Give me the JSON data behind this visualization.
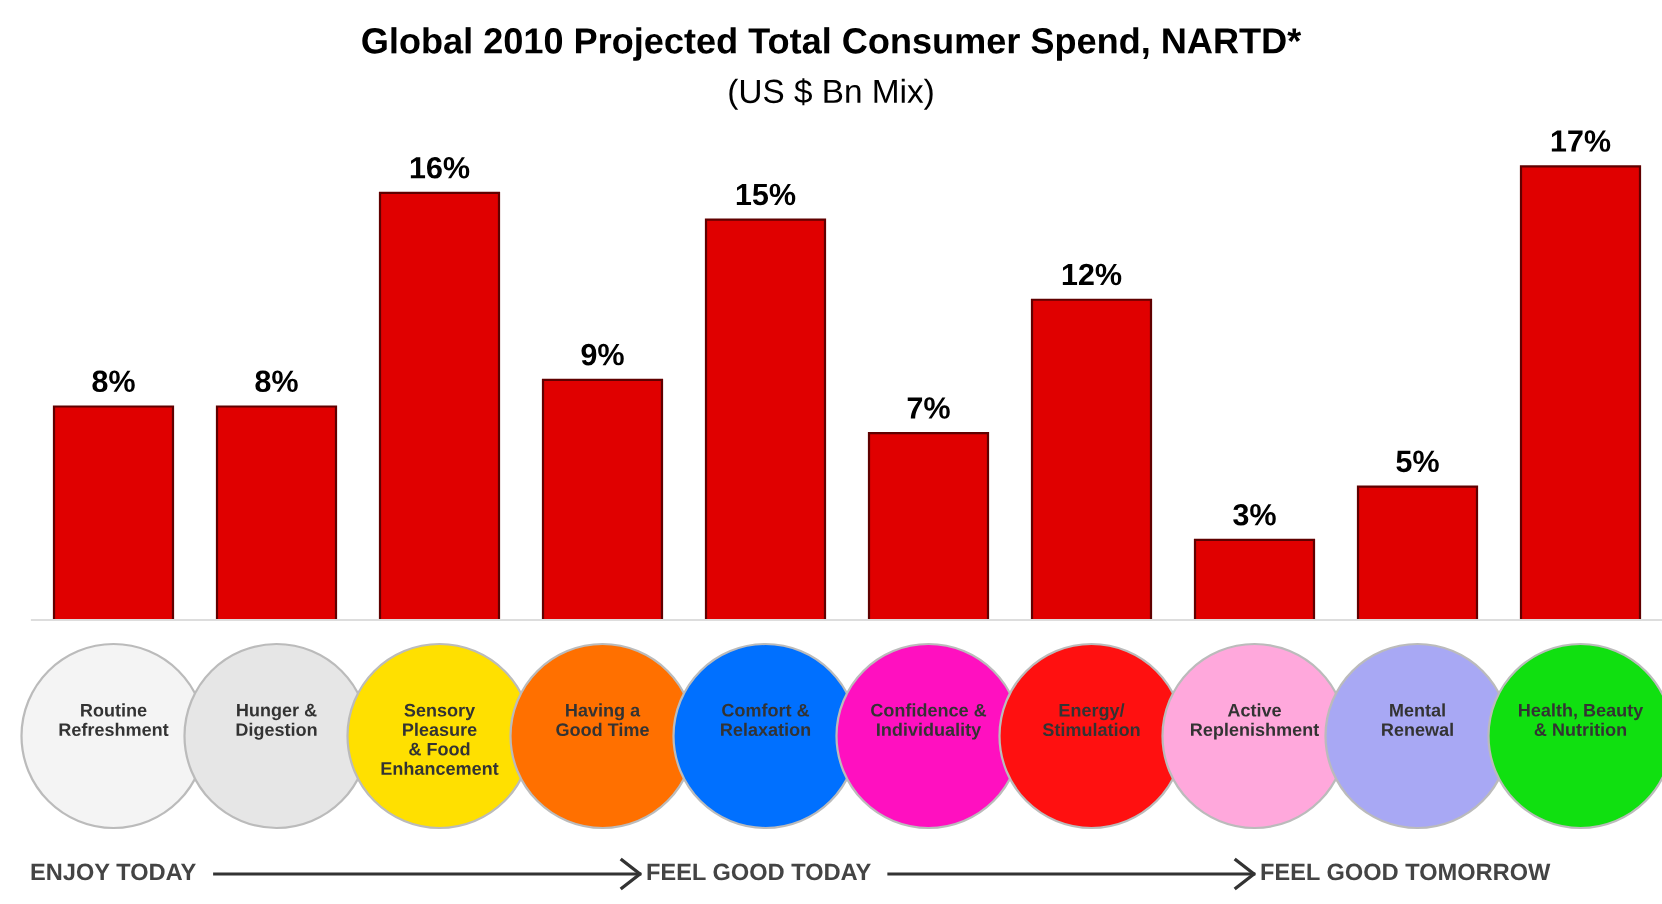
{
  "chart_data": {
    "type": "bar",
    "title": "Global 2010 Projected Total Consumer Spend, NARTD*",
    "subtitle": "(US $ Bn Mix)",
    "categories": [
      "Routine\nRefreshment",
      "Hunger &\nDigestion",
      "Sensory\nPleasure\n& Food\nEnhancement",
      "Having a\nGood Time",
      "Comfort &\nRelaxation",
      "Confidence &\nIndividuality",
      "Energy/\nStimulation",
      "Active\nReplenishment",
      "Mental\nRenewal",
      "Health, Beauty\n& Nutrition"
    ],
    "values": [
      8,
      8,
      16,
      9,
      15,
      7,
      12,
      3,
      5,
      17
    ],
    "value_labels": [
      "8%",
      "8%",
      "16%",
      "9%",
      "15%",
      "7%",
      "12%",
      "3%",
      "5%",
      "17%"
    ],
    "color": "#e00000",
    "annotations": [
      "ENJOY TODAY",
      "FEEL GOOD TODAY",
      "FEEL GOOD TOMORROW"
    ]
  }
}
